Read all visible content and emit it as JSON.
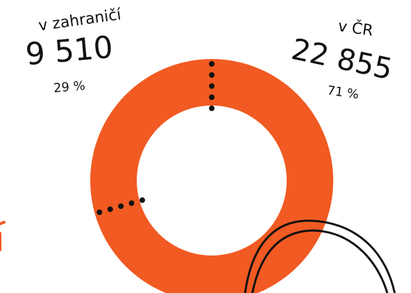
{
  "chart_data": {
    "type": "donut",
    "categories": [
      "v zahraničí",
      "v ČR"
    ],
    "values": [
      9510,
      22855
    ],
    "value_labels": [
      "9 510",
      "22 855"
    ],
    "percentages": [
      29,
      71
    ],
    "percentage_labels": [
      "29 %",
      "71 %"
    ],
    "color": "#f15a22"
  }
}
